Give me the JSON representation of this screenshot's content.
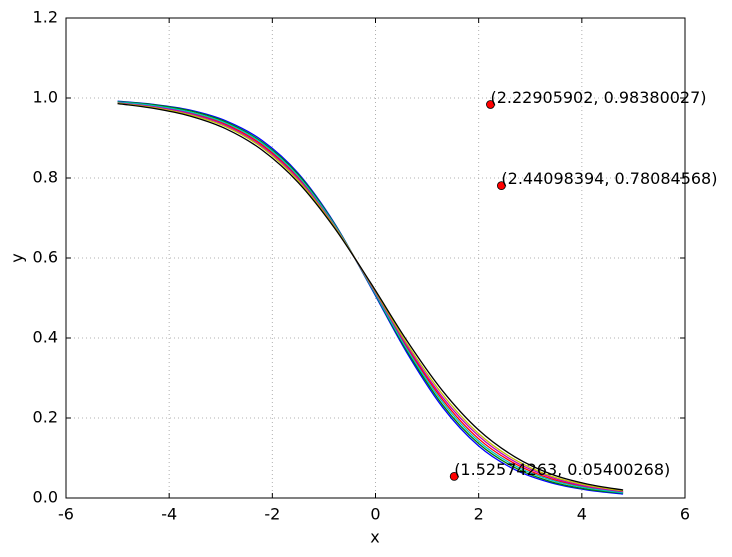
{
  "chart_data": {
    "type": "line",
    "xlabel": "x",
    "ylabel": "y",
    "x": [
      -5,
      -4.3,
      -3.6,
      -2.9,
      -2.2,
      -1.5,
      -0.8,
      -0.1,
      0.6,
      1.3,
      2.0,
      2.7,
      3.4,
      4.1,
      4.8
    ],
    "series": [
      {
        "color": "#0000ff",
        "values": [
          0.992,
          0.984,
          0.97,
          0.943,
          0.894,
          0.812,
          0.688,
          0.529,
          0.365,
          0.227,
          0.13,
          0.071,
          0.038,
          0.02,
          0.01
        ]
      },
      {
        "color": "#008000",
        "values": [
          0.991,
          0.983,
          0.968,
          0.94,
          0.89,
          0.809,
          0.686,
          0.531,
          0.37,
          0.233,
          0.136,
          0.076,
          0.041,
          0.022,
          0.012
        ]
      },
      {
        "color": "#ff0000",
        "values": [
          0.989,
          0.979,
          0.963,
          0.934,
          0.883,
          0.801,
          0.682,
          0.534,
          0.379,
          0.246,
          0.148,
          0.086,
          0.048,
          0.027,
          0.015
        ]
      },
      {
        "color": "#00bfbf",
        "values": [
          0.99,
          0.981,
          0.965,
          0.937,
          0.887,
          0.805,
          0.684,
          0.532,
          0.374,
          0.24,
          0.142,
          0.081,
          0.045,
          0.025,
          0.013
        ]
      },
      {
        "color": "#bf00bf",
        "values": [
          0.988,
          0.978,
          0.961,
          0.931,
          0.879,
          0.798,
          0.681,
          0.535,
          0.383,
          0.252,
          0.155,
          0.091,
          0.052,
          0.029,
          0.016
        ]
      },
      {
        "color": "#bfbf00",
        "values": [
          0.987,
          0.976,
          0.958,
          0.928,
          0.876,
          0.794,
          0.679,
          0.537,
          0.388,
          0.259,
          0.161,
          0.096,
          0.055,
          0.032,
          0.018
        ]
      },
      {
        "color": "#000000",
        "values": [
          0.986,
          0.974,
          0.955,
          0.923,
          0.87,
          0.789,
          0.676,
          0.539,
          0.395,
          0.268,
          0.17,
          0.103,
          0.06,
          0.035,
          0.02
        ]
      }
    ],
    "points": {
      "color": "#ff0000",
      "x": [
        2.22905902,
        2.44098394,
        1.52574263
      ],
      "y": [
        0.98380027,
        0.78084568,
        0.05400268
      ],
      "labels": [
        "(2.22905902, 0.98380027)",
        "(2.44098394, 0.78084568)",
        "(1.52574263, 0.05400268)"
      ]
    },
    "xlim": [
      -6,
      6
    ],
    "xticks": [
      -6,
      -4,
      -2,
      0,
      2,
      4,
      6
    ],
    "ylim": [
      0,
      1.2
    ],
    "yticks": [
      {
        "value": 0,
        "label": "0.0"
      },
      0.2,
      0.4,
      0.6,
      0.8,
      {
        "value": 1,
        "label": "1.0"
      },
      1.2
    ],
    "grid": true
  }
}
